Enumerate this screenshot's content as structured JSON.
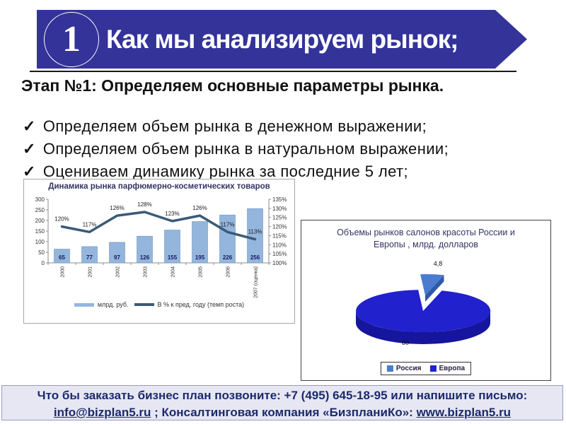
{
  "slide": {
    "header": {
      "number": "1",
      "title": "Как мы анализируем рынок;"
    },
    "subtitle": "Этап №1: Определяем основные параметры рынка.",
    "check_mark": "✓",
    "bullets": [
      "Определяем объем рынка в денежном выражении;",
      "Определяем объем рынка в натуральном выражении;",
      "Оцениваем динамику рынка за последние 5 лет;"
    ],
    "footer": {
      "line1": "Что бы заказать бизнес план позвоните: +7 (495) 645-18-95 или напишите письмо:",
      "email": "info@bizplan5.ru",
      "middle": " ; Консалтинговая компания «БизпланиКо»: ",
      "website": "www.bizplan5.ru"
    }
  },
  "colors": {
    "banner": "#333399",
    "divider": "#1a1a1a",
    "bar_fill": "#94B6DD",
    "bar_border": "#6F94BF",
    "line": "#3A5A78",
    "chart_title": "#333366",
    "footer_bg": "#E7E7F4",
    "footer_border": "#9A9ABF",
    "footer_text": "#1B2B6B"
  },
  "chart_data": [
    {
      "type": "bar",
      "title": "Динамика рынка парфюмерно-косметических товаров",
      "categories": [
        "2000",
        "2001",
        "2002",
        "2003",
        "2004",
        "2005",
        "2006",
        "2007 (оценка)"
      ],
      "series": [
        {
          "name": "млрд. руб.",
          "chart": "bar",
          "axis": "left",
          "color": "#94B6DD",
          "values": [
            65,
            77,
            97,
            126,
            155,
            195,
            226,
            256
          ]
        },
        {
          "name": "В % к пред. году (темп роста)",
          "chart": "line",
          "axis": "right",
          "color": "#3A5A78",
          "values": [
            120,
            117,
            126,
            128,
            123,
            126,
            117,
            113
          ],
          "point_labels": [
            "120%",
            "117%",
            "126%",
            "128%",
            "123%",
            "126%",
            "117%",
            "113%"
          ]
        }
      ],
      "left_axis": {
        "min": 0,
        "max": 300,
        "step": 50,
        "ticks": [
          "0",
          "50",
          "100",
          "150",
          "200",
          "250",
          "300"
        ]
      },
      "right_axis": {
        "min": 100,
        "max": 135,
        "step": 5,
        "ticks": [
          "100%",
          "105%",
          "110%",
          "115%",
          "120%",
          "125%",
          "130%",
          "135%"
        ]
      },
      "legend_position": "bottom",
      "grid": false
    },
    {
      "type": "pie",
      "style": "3d-exploded",
      "title": "Объемы рынков салонов красоты России и Европы , млрд. долларов",
      "title_lines": [
        "Объемы рынков салонов красоты России и",
        "Европы , млрд. долларов"
      ],
      "labels": [
        "Россия",
        "Европа"
      ],
      "values": [
        4.8,
        80
      ],
      "value_labels": [
        "4,8",
        "80"
      ],
      "colors": [
        "#4A7BD0",
        "#2121CE"
      ],
      "side_colors": [
        "#2F5AA8",
        "#15159E"
      ],
      "legend_position": "bottom"
    }
  ]
}
